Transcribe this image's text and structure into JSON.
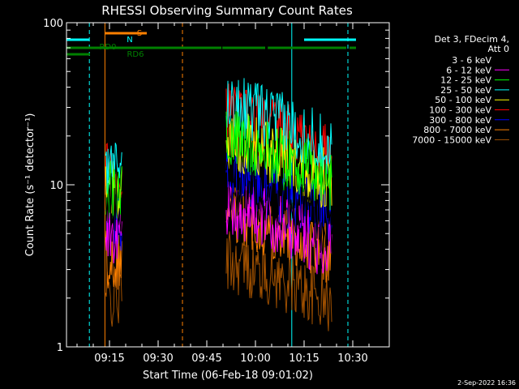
{
  "chart_data": {
    "type": "line",
    "title": "RHESSI Observing Summary Count Rates",
    "xlabel": "Start Time (06-Feb-18 09:01:02)",
    "ylabel": "Count Rate (s⁻¹ detector⁻¹)",
    "y_scale": "log",
    "ylim": [
      1,
      100
    ],
    "xlim_minutes": [
      9.0,
      38.5
    ],
    "x_ticks": [
      {
        "label": "09:15",
        "min": 15
      },
      {
        "label": "09:30",
        "min": 30
      },
      {
        "label": "09:45",
        "min": 45
      },
      {
        "label": "10:00",
        "min": 60
      },
      {
        "label": "10:15",
        "min": 75
      },
      {
        "label": "10:30",
        "min": 90
      }
    ],
    "y_ticks": [
      {
        "label": "1",
        "value": 1
      },
      {
        "label": "10",
        "value": 10
      },
      {
        "label": "100",
        "value": 100
      }
    ],
    "legend_header": [
      "Det 3, FDecim 4,",
      "Att 0"
    ],
    "series": [
      {
        "name": "3 - 6 keV",
        "color": "#000000",
        "seg1": 8,
        "seg2": 9
      },
      {
        "name": "6 - 12 keV",
        "color": "#ff00ff",
        "seg1": 5,
        "seg2": 6.5
      },
      {
        "name": "12 - 25 keV",
        "color": "#00ff00",
        "seg1": 9,
        "seg2": 17
      },
      {
        "name": "25 - 50 keV",
        "color": "#00ffff",
        "seg1": 12,
        "seg2": 28
      },
      {
        "name": "50 - 100 keV",
        "color": "#ffff00",
        "seg1": 9,
        "seg2": 17
      },
      {
        "name": "100 - 300 keV",
        "color": "#ff0000",
        "seg1": 12,
        "seg2": 25
      },
      {
        "name": "300 - 800 keV",
        "color": "#0000ff",
        "seg1": 6,
        "seg2": 10
      },
      {
        "name": "800 - 7000 keV",
        "color": "#ff8000",
        "seg1": 3.5,
        "seg2": 6
      },
      {
        "name": "7000 - 15000 keV",
        "color": "#a05000",
        "seg1": 2,
        "seg2": 3
      }
    ],
    "data_segments": [
      {
        "start_min": 13.8,
        "end_min": 19.0
      },
      {
        "start_min": 51.0,
        "end_min": 83.5
      }
    ],
    "flags": [
      {
        "label": "S",
        "color": "#ff8000",
        "segments": [
          [
            13.5,
            26.5
          ]
        ]
      },
      {
        "label": "N",
        "color": "#00ffff",
        "segments": [
          [
            -6.5,
            8.8
          ],
          [
            75,
            91
          ]
        ]
      },
      {
        "label": "RD0",
        "color": "#008000",
        "segments": [
          [
            -6.5,
            49.5
          ],
          [
            49.8,
            63.0
          ],
          [
            63.8,
            88.0
          ],
          [
            89.0,
            91.0
          ]
        ]
      },
      {
        "label": "RD6",
        "color": "#008000",
        "segments": [
          [
            -6.5,
            9.0
          ]
        ]
      }
    ],
    "vlines": [
      {
        "min": -6.5,
        "color": "#00ffff",
        "dash": false
      },
      {
        "min": 8.8,
        "color": "#00ffff",
        "dash": true
      },
      {
        "min": 13.6,
        "color": "#ff8000",
        "dash": false
      },
      {
        "min": 37.5,
        "color": "#ff8000",
        "dash": true
      },
      {
        "min": 71.2,
        "color": "#00ffff",
        "dash": false
      },
      {
        "min": 88.5,
        "color": "#00ffff",
        "dash": true
      }
    ]
  },
  "footer": {
    "date": "2-Sep-2022 16:36"
  }
}
